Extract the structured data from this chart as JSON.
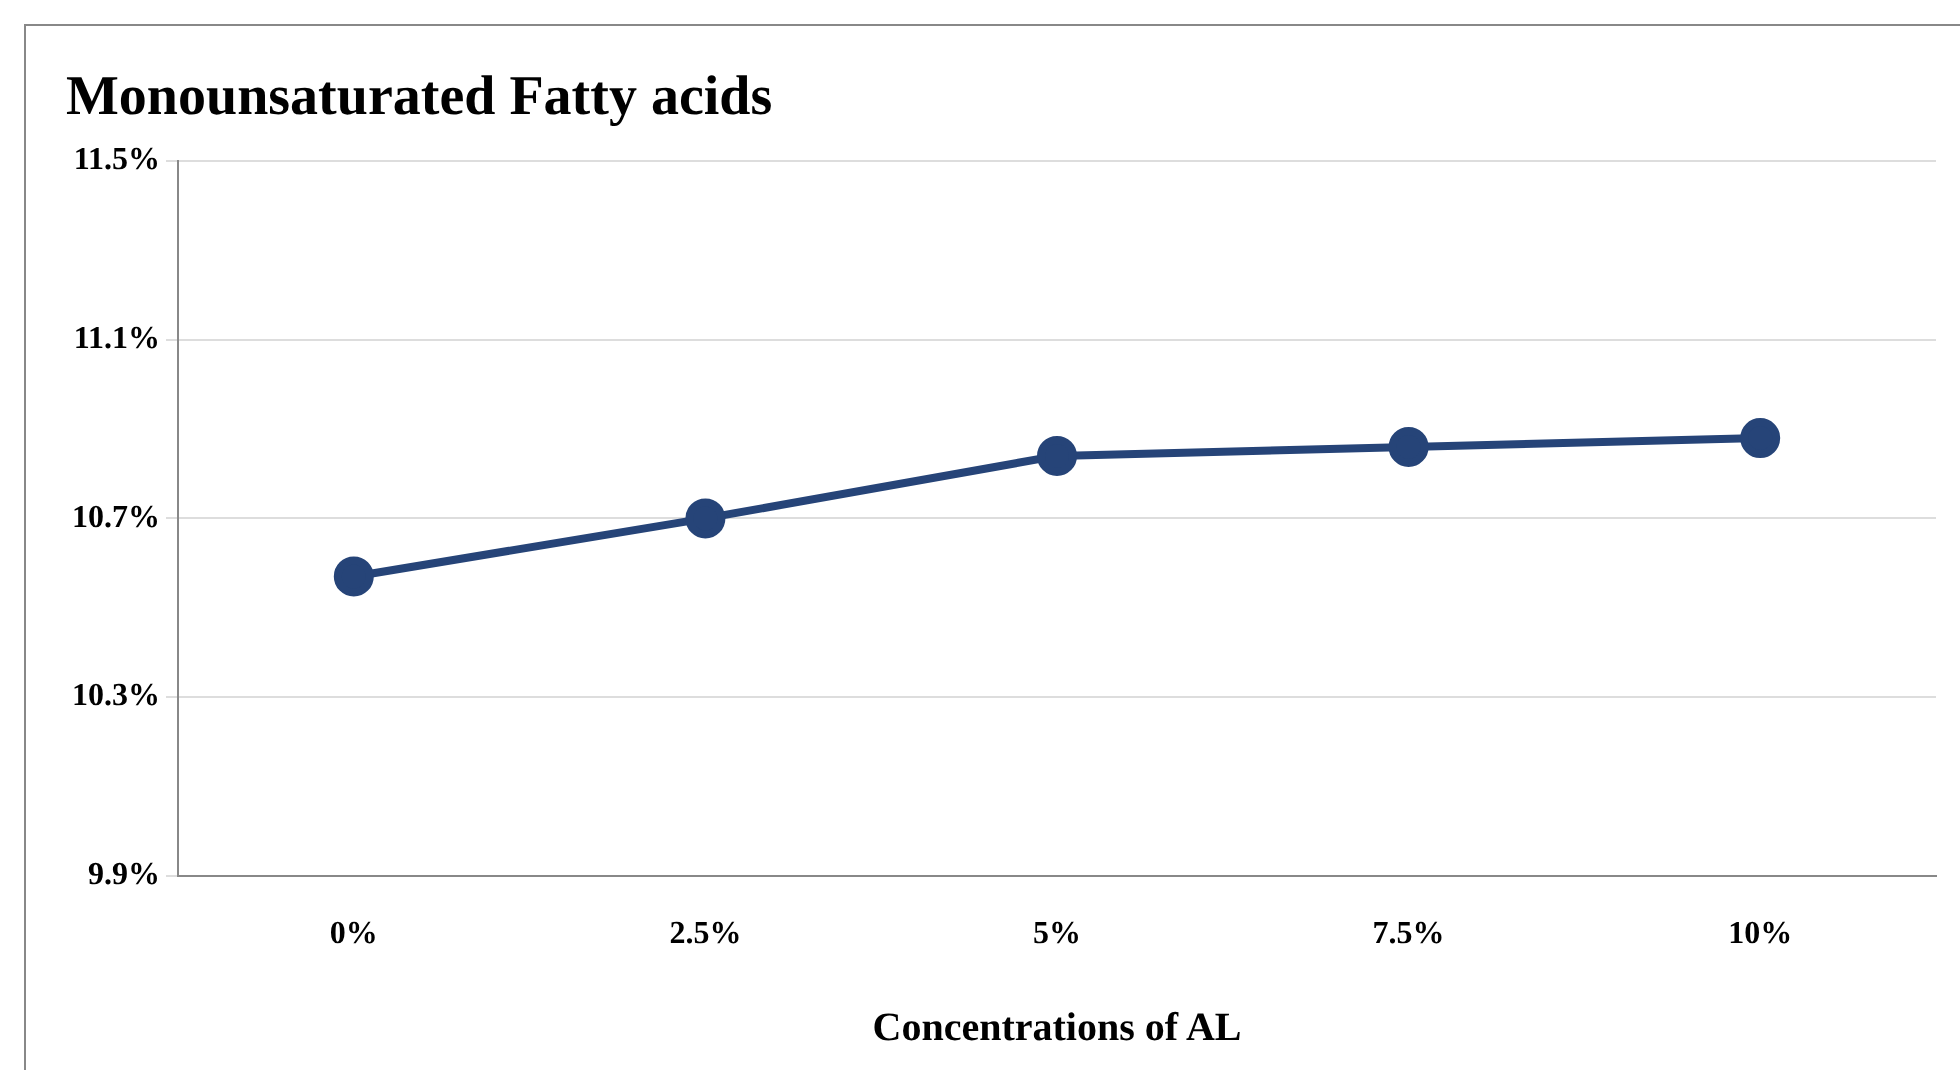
{
  "chart_data": {
    "type": "line",
    "title": "Monounsaturated Fatty acids",
    "xlabel": "Concentrations of AL",
    "categories": [
      "0%",
      "2.5%",
      "5%",
      "7.5%",
      "10%"
    ],
    "series": [
      {
        "color": "#264478",
        "values": [
          10.57,
          10.7,
          10.84,
          10.86,
          10.88
        ]
      }
    ],
    "ylim": [
      9.9,
      11.5
    ],
    "yticks": [
      {
        "value": 9.9,
        "label": "9.9%"
      },
      {
        "value": 10.3,
        "label": "10.3%"
      },
      {
        "value": 10.7,
        "label": "10.7%"
      },
      {
        "value": 11.1,
        "label": "11.1%"
      },
      {
        "value": 11.5,
        "label": "11.5%"
      }
    ],
    "grid": "y",
    "legend": false,
    "marker": "circle",
    "line_style": "solid"
  }
}
